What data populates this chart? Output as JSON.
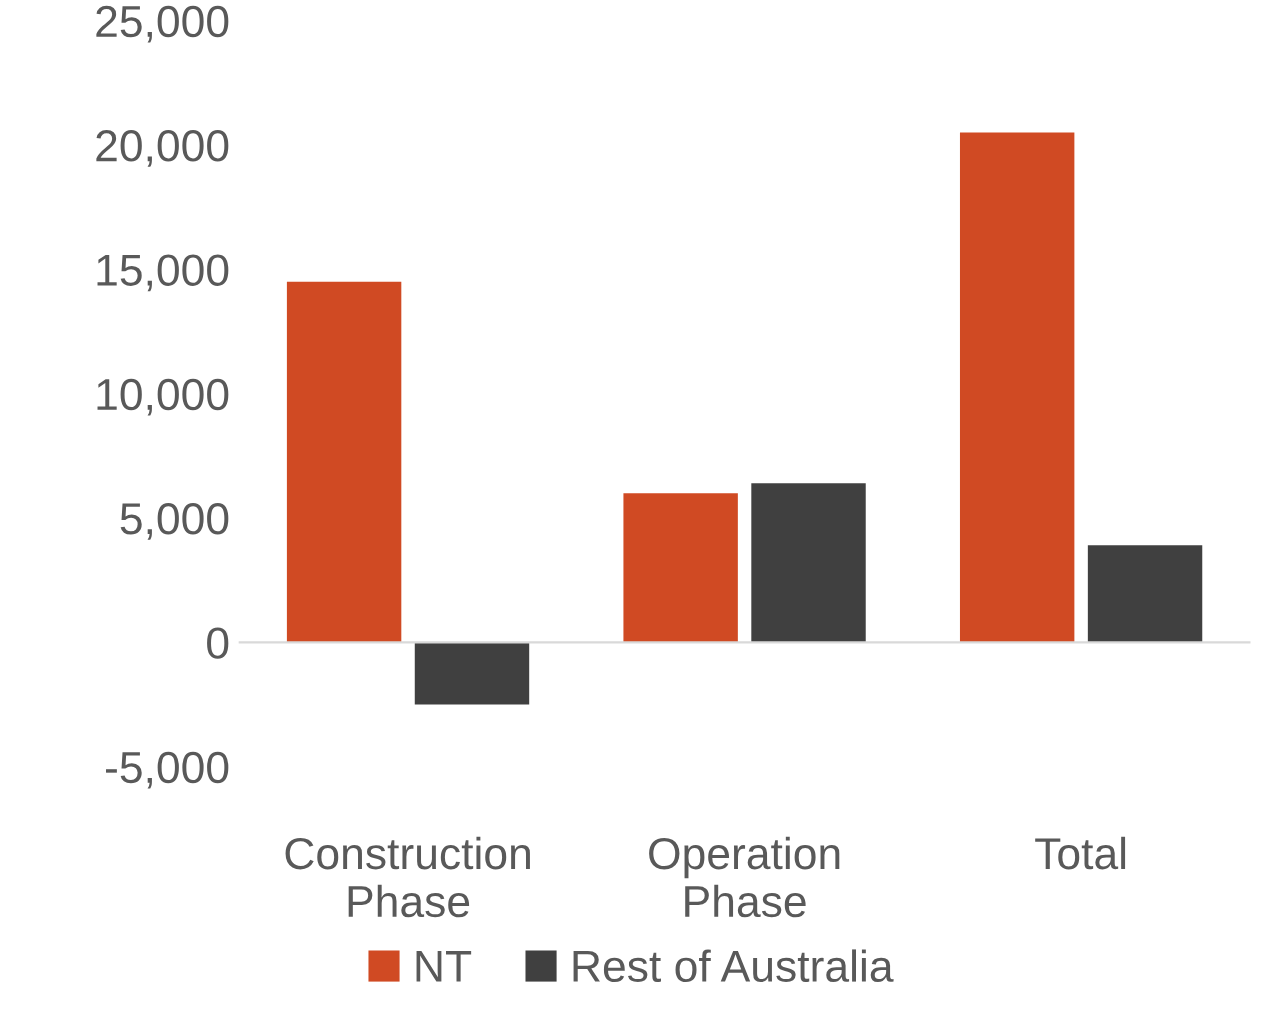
{
  "chart_data": {
    "type": "bar",
    "categories": [
      "Construction\nPhase",
      "Operation\nPhase",
      "Total"
    ],
    "series": [
      {
        "name": "NT",
        "color": "#d04a23",
        "values": [
          14500,
          6000,
          20500
        ]
      },
      {
        "name": "Rest of Australia",
        "color": "#404040",
        "values": [
          -2500,
          6400,
          3900
        ]
      }
    ],
    "ylim": [
      -5000,
      25000
    ],
    "yticks": [
      {
        "value": -5000,
        "label": "-5,000"
      },
      {
        "value": 0,
        "label": "0"
      },
      {
        "value": 5000,
        "label": "5,000"
      },
      {
        "value": 10000,
        "label": "10,000"
      },
      {
        "value": 15000,
        "label": "15,000"
      },
      {
        "value": 20000,
        "label": "20,000"
      },
      {
        "value": 25000,
        "label": "25,000"
      }
    ],
    "legend": "bottom"
  }
}
